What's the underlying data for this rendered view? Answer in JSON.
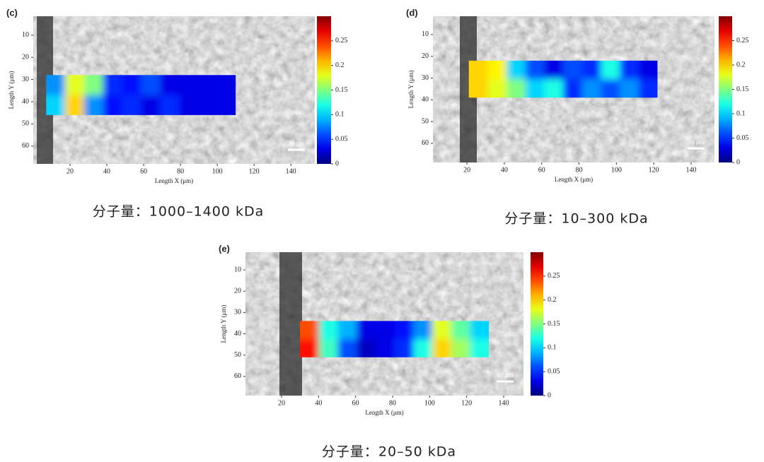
{
  "chart_data": [
    {
      "type": "heatmap",
      "panel": "(c)",
      "caption": "分子量：1000–1400 kDa",
      "xlabel": "Length X (μm)",
      "ylabel": "Length Y (μm)",
      "scale_bar": "10 μm",
      "xlim": [
        0,
        153
      ],
      "ylim": [
        1.5,
        68
      ],
      "y_inverted": true,
      "xticks": [
        20,
        40,
        60,
        80,
        100,
        120,
        140
      ],
      "yticks": [
        10,
        20,
        30,
        40,
        50,
        60
      ],
      "overlay_x": [
        7,
        110
      ],
      "overlay_y": [
        28,
        46
      ],
      "z": [
        [
          0.08,
          0.18,
          0.15,
          0.05,
          0.04,
          0.06,
          0.03,
          0.03,
          0.03,
          0.03
        ],
        [
          0.1,
          0.2,
          0.08,
          0.04,
          0.05,
          0.03,
          0.05,
          0.03,
          0.03,
          0.03
        ]
      ],
      "clim": [
        0,
        0.3
      ],
      "cticks": [
        0,
        0.05,
        0.1,
        0.15,
        0.2,
        0.25
      ],
      "colormap": "jet"
    },
    {
      "type": "heatmap",
      "panel": "(d)",
      "caption": "分子量：10–300 kDa",
      "xlabel": "Length X (μm)",
      "ylabel": "Length Y (μm)",
      "scale_bar": "10 μm",
      "xlim": [
        1.8,
        152.5
      ],
      "ylim": [
        1.6,
        68.8
      ],
      "y_inverted": true,
      "xticks": [
        20,
        40,
        60,
        80,
        100,
        120,
        140
      ],
      "yticks": [
        10,
        20,
        30,
        40,
        50,
        60
      ],
      "overlay_x": [
        21,
        122
      ],
      "overlay_y": [
        22,
        39
      ],
      "z": [
        [
          0.2,
          0.19,
          0.1,
          0.06,
          0.03,
          0.06,
          0.05,
          0.12,
          0.05,
          0.03
        ],
        [
          0.2,
          0.18,
          0.15,
          0.1,
          0.12,
          0.05,
          0.08,
          0.06,
          0.08,
          0.05
        ]
      ],
      "clim": [
        0,
        0.3
      ],
      "cticks": [
        0,
        0.05,
        0.1,
        0.15,
        0.2,
        0.25
      ],
      "colormap": "jet"
    },
    {
      "type": "heatmap",
      "panel": "(e)",
      "caption": "分子量：20–50 kDa",
      "xlabel": "Length X (μm)",
      "ylabel": "Length Y (μm)",
      "scale_bar": "10 μm",
      "xlim": [
        0.5,
        150.7
      ],
      "ylim": [
        1.7,
        69
      ],
      "y_inverted": true,
      "xticks": [
        20,
        40,
        60,
        80,
        100,
        120,
        140
      ],
      "yticks": [
        10,
        20,
        30,
        40,
        50,
        60
      ],
      "overlay_x": [
        30,
        132
      ],
      "overlay_y": [
        34,
        51
      ],
      "z": [
        [
          0.24,
          0.12,
          0.09,
          0.03,
          0.03,
          0.04,
          0.08,
          0.18,
          0.14,
          0.1
        ],
        [
          0.26,
          0.13,
          0.06,
          0.02,
          0.03,
          0.05,
          0.12,
          0.2,
          0.16,
          0.12
        ]
      ],
      "clim": [
        0,
        0.3
      ],
      "cticks": [
        0,
        0.05,
        0.1,
        0.15,
        0.2,
        0.25
      ],
      "colormap": "jet"
    }
  ]
}
